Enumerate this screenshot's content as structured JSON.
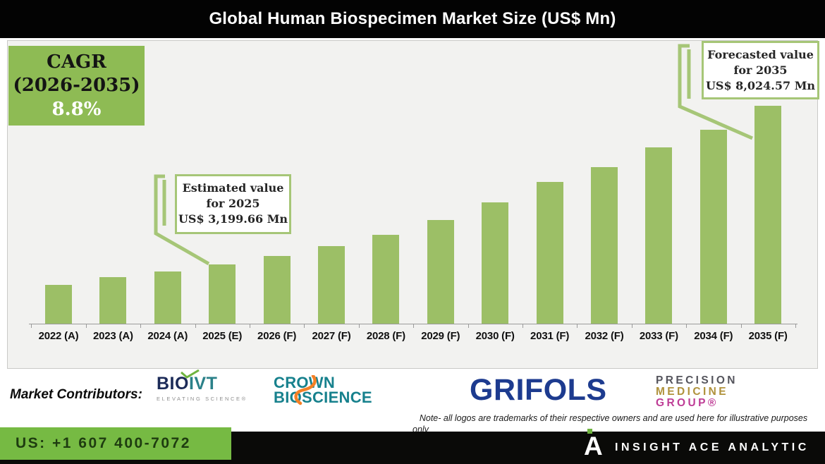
{
  "title": "Global Human Biospecimen Market Size (US$ Mn)",
  "cagr_box": {
    "line1": "CAGR",
    "line2": "(2026-2035)",
    "value": "8.8%"
  },
  "callouts": {
    "estimated": {
      "line1": "Estimated value",
      "line2": "for 2025",
      "line3": "US$ 3,199.66 Mn"
    },
    "forecasted": {
      "line1": "Forecasted value",
      "line2": "for 2035",
      "line3": "US$ 8,024.57 Mn"
    }
  },
  "chart_data": {
    "type": "bar",
    "title": "Global Human Biospecimen Market Size (US$ Mn)",
    "unit": "US$ Mn",
    "categories": [
      "2022 (A)",
      "2023 (A)",
      "2024 (A)",
      "2025 (E)",
      "2026 (F)",
      "2027 (F)",
      "2028 (F)",
      "2029 (F)",
      "2030 (F)",
      "2031 (F)",
      "2032 (F)",
      "2033 (F)",
      "2034 (F)",
      "2035 (F)"
    ],
    "values": [
      2573,
      2821,
      2986,
      3199.66,
      3456,
      3762,
      4105,
      4554,
      5089,
      5710,
      6146,
      6752,
      7276,
      8024.57
    ],
    "labeled_points": [
      {
        "category": "2025 (E)",
        "value": 3199.66,
        "label": "Estimated value for 2025 US$ 3,199.66 Mn"
      },
      {
        "category": "2035 (F)",
        "value": 8024.57,
        "label": "Forecasted value for 2035 US$ 8,024.57 Mn"
      }
    ],
    "cagr": {
      "label": "CAGR (2026-2035)",
      "value_pct": 8.8
    },
    "bar_color": "#9cbf66",
    "grid": false,
    "legend": false,
    "y_axis_visible": false,
    "note": "Only 2025 and 2035 bars carry data labels; other values estimated from bar heights"
  },
  "contributors": {
    "label": "Market Contributors:",
    "bioivt": {
      "bio": "BIO",
      "ivt": "IVT",
      "sub": "ELEVATING SCIENCE®"
    },
    "crown": {
      "line1": "CROWN",
      "line2": "BIOSCIENCE"
    },
    "grifols": {
      "name": "GRIFOLS"
    },
    "pmg": {
      "line1": "PRECISION",
      "line2": "MEDICINE",
      "line3": "GROUP®"
    }
  },
  "note_line1": "Note- all logos are trademarks of their respective owners and are used here for illustrative purposes",
  "note_line2": "only",
  "footer": {
    "phone": "US: +1 607 400-7072",
    "brand": "INSIGHT ACE ANALYTIC",
    "logo_letter": "A"
  },
  "colors": {
    "bar": "#9cbf66",
    "cagr_bg": "#8ebb54",
    "callout_border": "#a6c677",
    "footer_green": "#76ba43",
    "title_bg": "#030303"
  }
}
